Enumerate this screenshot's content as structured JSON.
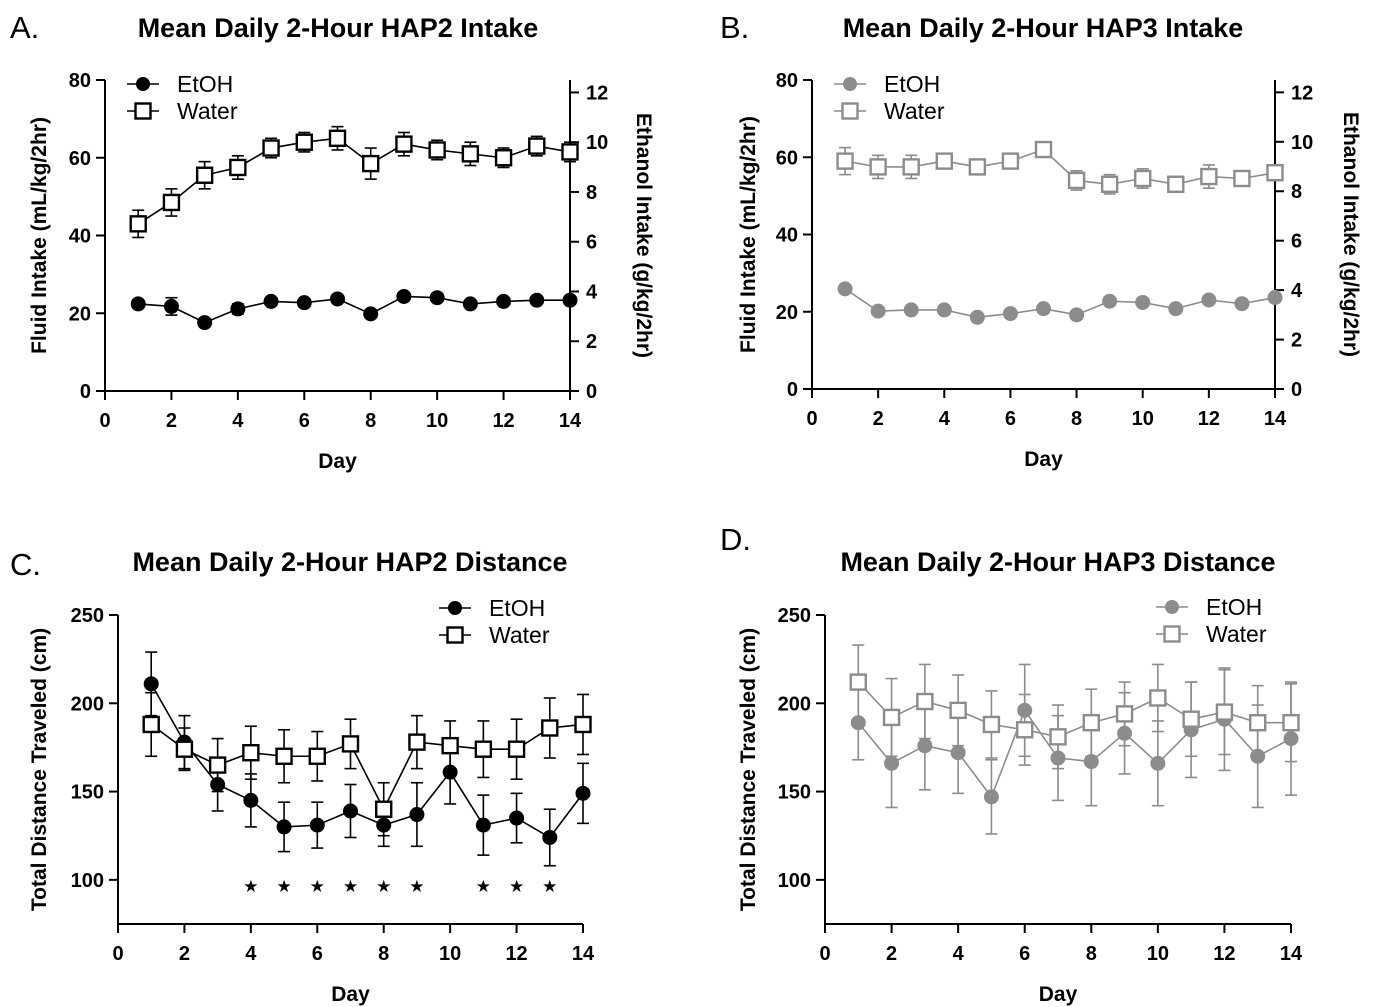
{
  "figure": {
    "panels": [
      {
        "letter": "A."
      },
      {
        "letter": "B."
      },
      {
        "letter": "C."
      },
      {
        "letter": "D."
      }
    ]
  },
  "chart_data": [
    {
      "type": "line",
      "title": "Mean Daily 2-Hour HAP2 Intake",
      "xlabel": "Day",
      "ylabel": "Fluid Intake (mL/kg/2hr)",
      "y2label": "Ethanol Intake (g/kg/2hr)",
      "xlim": [
        0,
        14
      ],
      "ylim": [
        0,
        80
      ],
      "y2lim": [
        0,
        12.5
      ],
      "xticks": [
        0,
        2,
        4,
        6,
        8,
        10,
        12,
        14
      ],
      "yticks": [
        0,
        20,
        40,
        60,
        80
      ],
      "y2ticks": [
        0,
        2,
        4,
        6,
        8,
        10,
        12
      ],
      "color": "#000000",
      "legend_position": "top-left",
      "x": [
        1,
        2,
        3,
        4,
        5,
        6,
        7,
        8,
        9,
        10,
        11,
        12,
        13,
        14
      ],
      "series": [
        {
          "name": "EtOH",
          "marker": "circle",
          "axis": "right",
          "values": [
            3.5,
            3.4,
            2.75,
            3.3,
            3.6,
            3.55,
            3.7,
            3.1,
            3.8,
            3.75,
            3.5,
            3.6,
            3.65,
            3.65
          ],
          "errors": [
            0.15,
            0.35,
            0.15,
            0.2,
            0.15,
            0.1,
            0.15,
            0.15,
            0.15,
            0.15,
            0.1,
            0.1,
            0.1,
            0.1
          ]
        },
        {
          "name": "Water",
          "marker": "square",
          "axis": "left",
          "values": [
            43,
            48.5,
            55.5,
            57.5,
            62.5,
            64,
            65,
            58.5,
            63.5,
            62,
            61,
            60,
            63,
            61.5
          ],
          "errors": [
            3.5,
            3.5,
            3.5,
            3,
            2.5,
            2.5,
            3,
            4,
            3,
            2.5,
            3,
            2.5,
            2.5,
            2.5
          ]
        }
      ]
    },
    {
      "type": "line",
      "title": "Mean Daily 2-Hour HAP3 Intake",
      "xlabel": "Day",
      "ylabel": "Fluid Intake (mL/kg/2hr)",
      "y2label": "Ethanol Intake (g/kg/2hr)",
      "xlim": [
        0,
        14
      ],
      "ylim": [
        0,
        80
      ],
      "y2lim": [
        0,
        12.5
      ],
      "xticks": [
        0,
        2,
        4,
        6,
        8,
        10,
        12,
        14
      ],
      "yticks": [
        0,
        20,
        40,
        60,
        80
      ],
      "y2ticks": [
        0,
        2,
        4,
        6,
        8,
        10,
        12
      ],
      "color": "#8c8c8c",
      "legend_position": "top-left",
      "x": [
        1,
        2,
        3,
        4,
        5,
        6,
        7,
        8,
        9,
        10,
        11,
        12,
        13,
        14
      ],
      "series": [
        {
          "name": "EtOH",
          "marker": "circle",
          "axis": "right",
          "values": [
            4.05,
            3.15,
            3.2,
            3.2,
            2.9,
            3.05,
            3.25,
            3.0,
            3.55,
            3.5,
            3.25,
            3.6,
            3.45,
            3.7
          ],
          "errors": [
            0.1,
            0.1,
            0.1,
            0.1,
            0.1,
            0.1,
            0.1,
            0.1,
            0.1,
            0.1,
            0.1,
            0.1,
            0.1,
            0.1
          ]
        },
        {
          "name": "Water",
          "marker": "square",
          "axis": "left",
          "values": [
            59,
            57.5,
            57.5,
            59,
            57.5,
            59,
            62,
            54,
            53,
            54.5,
            53,
            55,
            54.5,
            56
          ],
          "errors": [
            3.5,
            3,
            3,
            2,
            1.5,
            1.5,
            2,
            2.5,
            2.5,
            2.5,
            2,
            3,
            1.5,
            2
          ]
        }
      ]
    },
    {
      "type": "line",
      "title": "Mean Daily 2-Hour HAP2 Distance",
      "xlabel": "Day",
      "ylabel": "Total Distance Traveled (cm)",
      "xlim": [
        0,
        14
      ],
      "ylim": [
        75,
        250
      ],
      "xticks": [
        0,
        2,
        4,
        6,
        8,
        10,
        12,
        14
      ],
      "yticks": [
        100,
        150,
        200,
        250
      ],
      "color": "#000000",
      "legend_position": "top-right",
      "x": [
        1,
        2,
        3,
        4,
        5,
        6,
        7,
        8,
        9,
        10,
        11,
        12,
        13,
        14
      ],
      "series": [
        {
          "name": "EtOH",
          "marker": "circle",
          "values": [
            211,
            178,
            154,
            145,
            130,
            131,
            139,
            131,
            137,
            161,
            131,
            135,
            124,
            149
          ],
          "errors": [
            18,
            15,
            15,
            15,
            14,
            13,
            15,
            12,
            18,
            18,
            17,
            14,
            16,
            17
          ]
        },
        {
          "name": "Water",
          "marker": "square",
          "values": [
            188,
            174,
            165,
            172,
            170,
            170,
            177,
            140,
            178,
            176,
            174,
            174,
            186,
            188
          ],
          "errors": [
            18,
            12,
            15,
            15,
            15,
            14,
            14,
            15,
            15,
            14,
            16,
            17,
            17,
            17
          ]
        }
      ],
      "annotations": {
        "symbol": "★",
        "days": [
          4,
          5,
          6,
          7,
          8,
          9,
          11,
          12,
          13
        ]
      }
    },
    {
      "type": "line",
      "title": "Mean Daily 2-Hour HAP3 Distance",
      "xlabel": "Day",
      "ylabel": "Total Distance Traveled (cm)",
      "xlim": [
        0,
        14
      ],
      "ylim": [
        75,
        250
      ],
      "xticks": [
        0,
        2,
        4,
        6,
        8,
        10,
        12,
        14
      ],
      "yticks": [
        100,
        150,
        200,
        250
      ],
      "color": "#8c8c8c",
      "legend_position": "top-right",
      "x": [
        1,
        2,
        3,
        4,
        5,
        6,
        7,
        8,
        9,
        10,
        11,
        12,
        13,
        14
      ],
      "series": [
        {
          "name": "EtOH",
          "marker": "circle",
          "values": [
            189,
            166,
            176,
            172,
            147,
            196,
            169,
            167,
            183,
            166,
            185,
            191,
            170,
            180
          ],
          "errors": [
            21,
            25,
            25,
            23,
            21,
            26,
            24,
            25,
            23,
            24,
            27,
            29,
            29,
            32
          ]
        },
        {
          "name": "Water",
          "marker": "square",
          "values": [
            212,
            192,
            201,
            196,
            188,
            185,
            181,
            189,
            194,
            203,
            191,
            195,
            189,
            189
          ],
          "errors": [
            21,
            22,
            21,
            20,
            19,
            20,
            18,
            19,
            18,
            19,
            21,
            24,
            21,
            22
          ]
        }
      ]
    }
  ]
}
